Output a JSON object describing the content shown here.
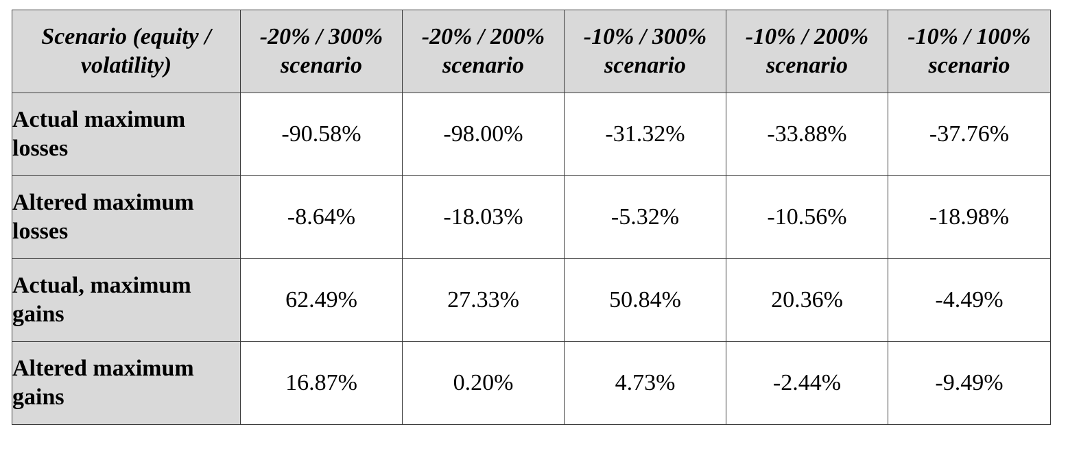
{
  "table": {
    "corner_header": "Scenario (equity / volatility)",
    "columns": [
      "-20% / 300% scenario",
      "-20% / 200% scenario",
      "-10% / 300% scenario",
      "-10% / 200% scenario",
      "-10% / 100% scenario"
    ],
    "rows": [
      {
        "label": "Actual maximum losses",
        "values": [
          "-90.58%",
          "-98.00%",
          "-31.32%",
          "-33.88%",
          "-37.76%"
        ]
      },
      {
        "label": "Altered maximum losses",
        "values": [
          "-8.64%",
          "-18.03%",
          "-5.32%",
          "-10.56%",
          "-18.98%"
        ]
      },
      {
        "label": "Actual, maximum gains",
        "values": [
          "62.49%",
          "27.33%",
          "50.84%",
          "20.36%",
          "-4.49%"
        ]
      },
      {
        "label": "Altered maximum gains",
        "values": [
          "16.87%",
          "0.20%",
          "4.73%",
          "-2.44%",
          "-9.49%"
        ]
      }
    ]
  },
  "colors": {
    "header_background": "#d9d9d9",
    "border": "#3a3a3a",
    "text": "#000000"
  }
}
